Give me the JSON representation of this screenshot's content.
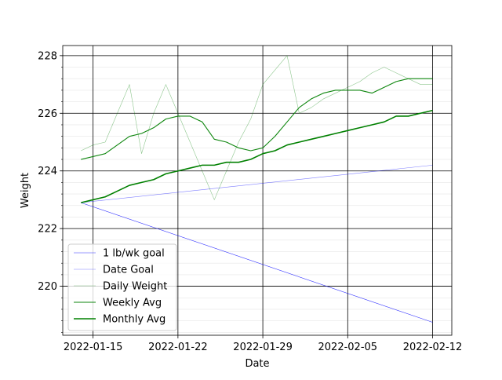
{
  "chart_data": {
    "type": "line",
    "title": "",
    "xlabel": "Date",
    "ylabel": "Weight",
    "x_range": [
      "2022-01-12T12:00",
      "2022-02-13T14:00"
    ],
    "ylim": [
      218.3,
      228.35
    ],
    "x_ticks": [
      "2022-01-15",
      "2022-01-22",
      "2022-01-29",
      "2022-02-05",
      "2022-02-12"
    ],
    "y_ticks": [
      220,
      222,
      224,
      226,
      228
    ],
    "y_minor_step": 0.4,
    "grid": "major and minor",
    "legend_position": "lower-left",
    "series": [
      {
        "name": "1 lb/wk goal",
        "color": "#0000ff",
        "line_width": 0.6,
        "opacity": 0.8,
        "x": [
          "2022-01-14",
          "2022-02-12"
        ],
        "y": [
          222.9,
          218.75
        ]
      },
      {
        "name": "Date Goal",
        "color": "#0000ff",
        "line_width": 0.6,
        "opacity": 0.5,
        "x": [
          "2022-01-14",
          "2022-02-12"
        ],
        "y": [
          222.9,
          224.2
        ]
      },
      {
        "name": "Daily Weight",
        "color": "#008000",
        "line_width": 0.6,
        "opacity": 0.45,
        "x": [
          "2022-01-14",
          "2022-01-15",
          "2022-01-16",
          "2022-01-17",
          "2022-01-18",
          "2022-01-19",
          "2022-01-20",
          "2022-01-21",
          "2022-01-22",
          "2022-01-23",
          "2022-01-24",
          "2022-01-25",
          "2022-01-26",
          "2022-01-27",
          "2022-01-28",
          "2022-01-29",
          "2022-01-30",
          "2022-01-31",
          "2022-02-01",
          "2022-02-02",
          "2022-02-03",
          "2022-02-04",
          "2022-02-05",
          "2022-02-06",
          "2022-02-07",
          "2022-02-08",
          "2022-02-09",
          "2022-02-10",
          "2022-02-11",
          "2022-02-12"
        ],
        "y": [
          224.7,
          224.9,
          225.0,
          226.0,
          227.0,
          224.6,
          226.0,
          227.0,
          226.0,
          225.0,
          224.0,
          223.0,
          224.0,
          225.0,
          225.8,
          227.0,
          227.5,
          228.0,
          226.0,
          226.2,
          226.5,
          226.7,
          226.9,
          227.1,
          227.4,
          227.6,
          227.4,
          227.2,
          227.0,
          227.0
        ]
      },
      {
        "name": "Weekly Avg",
        "color": "#008000",
        "line_width": 1.1,
        "opacity": 0.95,
        "x": [
          "2022-01-14",
          "2022-01-16",
          "2022-01-18",
          "2022-01-19",
          "2022-01-20",
          "2022-01-21",
          "2022-01-22",
          "2022-01-23",
          "2022-01-24",
          "2022-01-25",
          "2022-01-26",
          "2022-01-27",
          "2022-01-28",
          "2022-01-29",
          "2022-01-30",
          "2022-01-31",
          "2022-02-01",
          "2022-02-02",
          "2022-02-03",
          "2022-02-04",
          "2022-02-05",
          "2022-02-06",
          "2022-02-07",
          "2022-02-08",
          "2022-02-09",
          "2022-02-10",
          "2022-02-11",
          "2022-02-12"
        ],
        "y": [
          224.4,
          224.6,
          225.2,
          225.3,
          225.5,
          225.8,
          225.9,
          225.9,
          225.7,
          225.1,
          225.0,
          224.8,
          224.7,
          224.8,
          225.2,
          225.7,
          226.2,
          226.5,
          226.7,
          226.8,
          226.8,
          226.8,
          226.7,
          226.9,
          227.1,
          227.2,
          227.2,
          227.2
        ]
      },
      {
        "name": "Monthly Avg",
        "color": "#008000",
        "line_width": 1.6,
        "opacity": 1,
        "x": [
          "2022-01-14",
          "2022-01-15",
          "2022-01-16",
          "2022-01-17",
          "2022-01-18",
          "2022-01-19",
          "2022-01-20",
          "2022-01-21",
          "2022-01-22",
          "2022-01-23",
          "2022-01-24",
          "2022-01-25",
          "2022-01-26",
          "2022-01-27",
          "2022-01-28",
          "2022-01-29",
          "2022-01-30",
          "2022-01-31",
          "2022-02-01",
          "2022-02-02",
          "2022-02-03",
          "2022-02-04",
          "2022-02-05",
          "2022-02-06",
          "2022-02-07",
          "2022-02-08",
          "2022-02-09",
          "2022-02-10",
          "2022-02-11",
          "2022-02-12"
        ],
        "y": [
          222.9,
          223.0,
          223.1,
          223.3,
          223.5,
          223.6,
          223.7,
          223.9,
          224.0,
          224.1,
          224.2,
          224.2,
          224.3,
          224.3,
          224.4,
          224.6,
          224.7,
          224.9,
          225.0,
          225.1,
          225.2,
          225.3,
          225.4,
          225.5,
          225.6,
          225.7,
          225.9,
          225.9,
          226.0,
          226.1
        ]
      }
    ]
  }
}
